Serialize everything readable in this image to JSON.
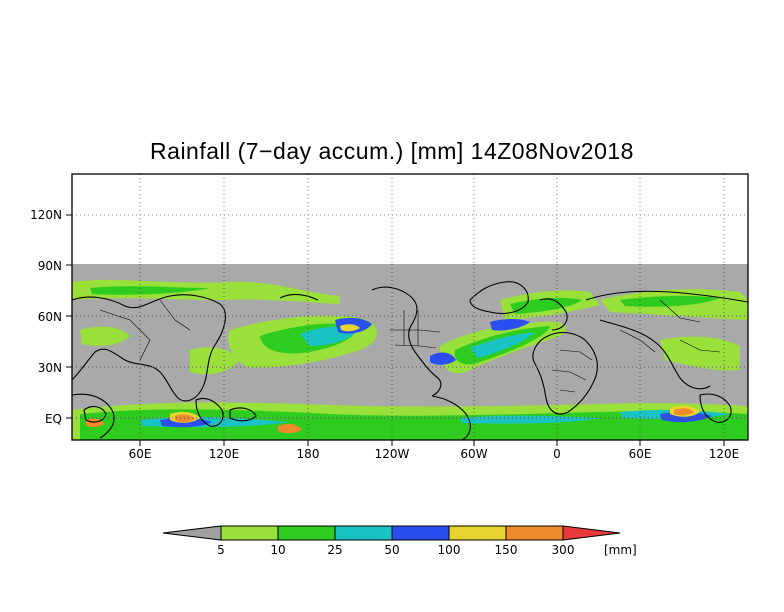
{
  "title": "Rainfall (7−day accum.) [mm] 14Z08Nov2018",
  "lat_ticks": [
    "120N",
    "90N",
    "60N",
    "30N",
    "EQ"
  ],
  "lon_ticks": [
    "60E",
    "120E",
    "180",
    "120W",
    "60W",
    "0",
    "60E",
    "120E"
  ],
  "colorbar": {
    "unit": "[mm]",
    "thresholds": [
      "5",
      "10",
      "25",
      "50",
      "100",
      "150",
      "300"
    ],
    "colors": [
      "#a0a0a0",
      "#9ae03a",
      "#2ecc1e",
      "#19c3c3",
      "#2a4ef0",
      "#e8d42e",
      "#ef8a2a",
      "#e83a3a"
    ]
  },
  "colors": {
    "no_rain": "#a9a9a9",
    "coast": "#000000",
    "grid": "#888888"
  }
}
